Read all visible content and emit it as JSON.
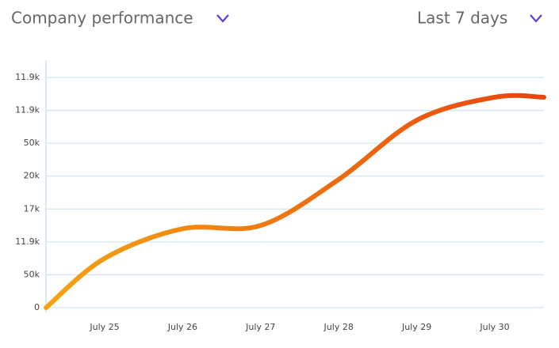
{
  "header": {
    "title": "Company performance",
    "range": "Last 7 days"
  },
  "chart_data": {
    "type": "line",
    "categories": [
      null,
      "July 25",
      "July 26",
      "July 27",
      "July 28",
      "July 29",
      "July 30",
      null
    ],
    "series": [
      {
        "color": "#f0600e",
        "values": [
          0,
          1.5,
          2.4,
          2.5,
          3.9,
          5.7,
          6.4,
          6.4
        ]
      }
    ],
    "ylim": [
      0,
      7
    ],
    "yticks": [
      0,
      {
        "value": 1,
        "label": "50k"
      },
      {
        "value": 2,
        "label": "11.9k"
      },
      {
        "value": 3,
        "label": "17k"
      },
      {
        "value": 4,
        "label": "20k"
      },
      {
        "value": 5,
        "label": "50k"
      },
      {
        "value": 6,
        "label": "11.9k"
      },
      {
        "value": 7,
        "label": "11.9k"
      }
    ],
    "grid": true
  }
}
